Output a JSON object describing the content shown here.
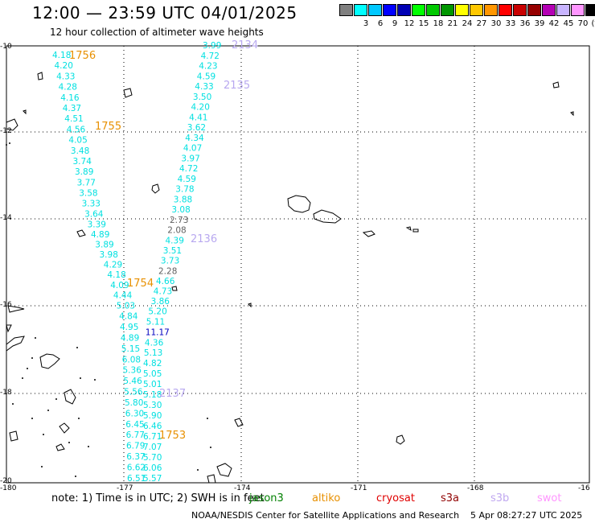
{
  "title": "12:00 — 23:59 UTC 04/01/2025",
  "subtitle": "12 hour collection of altimeter wave heights",
  "legend": {
    "swatches": [
      {
        "color": "#808080",
        "label": ""
      },
      {
        "color": "#00ffff",
        "label": "3"
      },
      {
        "color": "#00c8ff",
        "label": "6"
      },
      {
        "color": "#0000ff",
        "label": "9"
      },
      {
        "color": "#0000b4",
        "label": "12"
      },
      {
        "color": "#00ff00",
        "label": "15"
      },
      {
        "color": "#00c800",
        "label": "18"
      },
      {
        "color": "#009600",
        "label": "21"
      },
      {
        "color": "#ffff00",
        "label": "24"
      },
      {
        "color": "#ffc800",
        "label": "27"
      },
      {
        "color": "#ff9600",
        "label": "30"
      },
      {
        "color": "#ff0000",
        "label": "33"
      },
      {
        "color": "#c80000",
        "label": "36"
      },
      {
        "color": "#960000",
        "label": "39"
      },
      {
        "color": "#b400b4",
        "label": "42"
      },
      {
        "color": "#c8b4ff",
        "label": "45"
      },
      {
        "color": "#ff96ff",
        "label": "70"
      },
      {
        "color": "#000000",
        "label": "(ft)"
      }
    ]
  },
  "axes": {
    "lat_ticks": [
      "-10",
      "-12",
      "-14",
      "-16",
      "-18",
      "-20"
    ],
    "lon_ticks": [
      "-180",
      "-177",
      "-174",
      "-171",
      "-168",
      "-16"
    ]
  },
  "tracks": [
    {
      "name": "track-1756",
      "color": "#00e0e0",
      "values": [
        "4.18",
        "4.20",
        "4.33",
        "4.28",
        "4.16",
        "4.37",
        "4.51",
        "4.56",
        "4.05",
        "3.48",
        "3.74",
        "3.89",
        "3.77",
        "3.58",
        "3.33",
        "3.64",
        "3.39",
        "4.89",
        "3.89",
        "3.98",
        "4.29",
        "4.18",
        "4.09",
        "4.44",
        "5.03",
        "4.84",
        "4.95",
        "4.89",
        "5.15",
        "6.08",
        "5.36",
        "5.46",
        "5.56",
        "5.80",
        "6.30",
        "6.45",
        "6.77",
        "6.79",
        "6.37",
        "6.62",
        "6.51"
      ]
    },
    {
      "name": "track-2134",
      "color": "#00e0e0",
      "values": [
        "3.99",
        "4.72",
        "4.23",
        "4.59",
        "4.33",
        "3.50",
        "4.20",
        "4.41",
        "3.62",
        "4.34",
        "4.07",
        "3.97",
        "4.72",
        "4.59",
        "3.78",
        "3.88",
        "3.08",
        "2.73",
        "2.08",
        "4.39",
        "3.51",
        "3.73",
        "2.28",
        "4.66",
        "4.73",
        "3.86",
        "5.20",
        "5.11",
        "11.17",
        "4.36",
        "5.13",
        "4.82",
        "5.05",
        "5.01",
        "5.18",
        "5.30",
        "5.90",
        "6.46",
        "6.71",
        "7.07",
        "5.70",
        "6.06",
        "5.57"
      ]
    }
  ],
  "time_labels": [
    {
      "text": "1756",
      "color": "#e89000"
    },
    {
      "text": "1755",
      "color": "#e89000"
    },
    {
      "text": "1754",
      "color": "#e89000"
    },
    {
      "text": "1753",
      "color": "#e89000"
    },
    {
      "text": "2134",
      "color": "#b8a8f0"
    },
    {
      "text": "2135",
      "color": "#b8a8f0"
    },
    {
      "text": "2136",
      "color": "#b8a8f0"
    },
    {
      "text": "2137",
      "color": "#b8a8f0"
    }
  ],
  "note": "note:  1) Time is in UTC; 2) SWH is in feet",
  "satellites": [
    {
      "name": "jason3",
      "color": "#008000"
    },
    {
      "name": "altiko",
      "color": "#e89000"
    },
    {
      "name": "cryosat",
      "color": "#e00000"
    },
    {
      "name": "s3a",
      "color": "#900000"
    },
    {
      "name": "s3b",
      "color": "#c0a8f0"
    },
    {
      "name": "swot",
      "color": "#ff96ff"
    }
  ],
  "credit": "NOAA/NESDIS Center for Satellite Applications and Research",
  "datestamp": "5 Apr 08:27:27 UTC 2025"
}
